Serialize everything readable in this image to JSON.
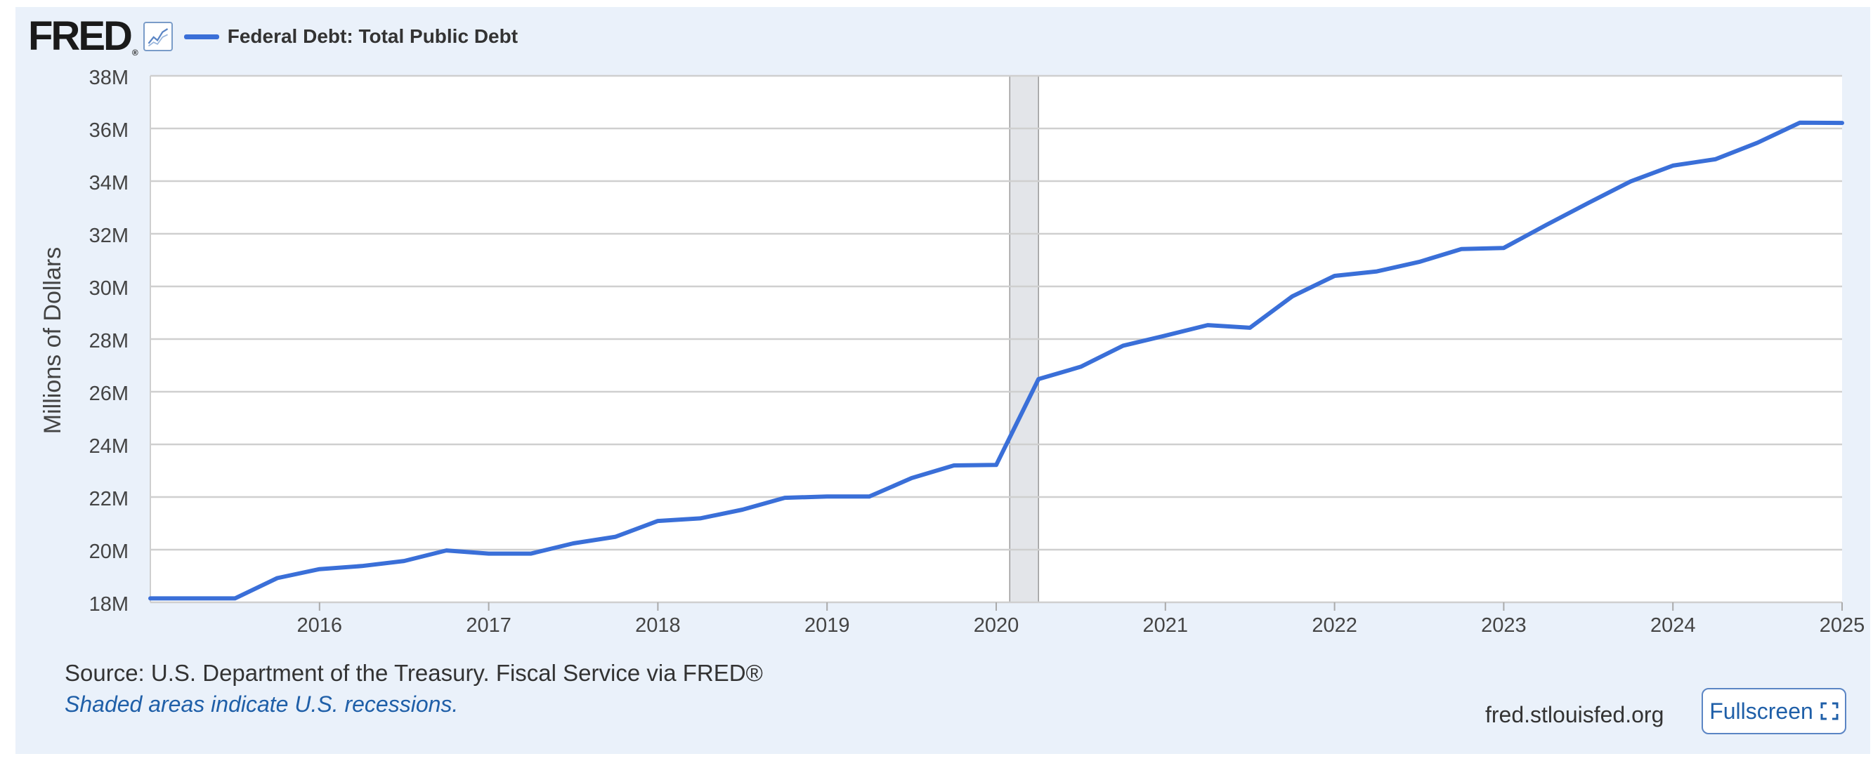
{
  "brand": {
    "logo_text": "FRED",
    "logo_reg": "®"
  },
  "legend": {
    "label": "Federal Debt: Total Public Debt",
    "color": "#3a6fd8"
  },
  "chart_data": {
    "type": "line",
    "title": "Federal Debt: Total Public Debt",
    "ylabel": "Millions of Dollars",
    "xlabel": "",
    "ylim": [
      18,
      38
    ],
    "xlim": [
      2015.0,
      2025.0
    ],
    "yticks": [
      18,
      20,
      22,
      24,
      26,
      28,
      30,
      32,
      34,
      36,
      38
    ],
    "ytick_labels": [
      "18M",
      "20M",
      "22M",
      "24M",
      "26M",
      "28M",
      "30M",
      "32M",
      "34M",
      "36M",
      "38M"
    ],
    "xticks": [
      2016,
      2017,
      2018,
      2019,
      2020,
      2021,
      2022,
      2023,
      2024,
      2025
    ],
    "xtick_labels": [
      "2016",
      "2017",
      "2018",
      "2019",
      "2020",
      "2021",
      "2022",
      "2023",
      "2024",
      "2025"
    ],
    "grid": true,
    "recessions": [
      {
        "start": 2020.08,
        "end": 2020.25
      }
    ],
    "series": [
      {
        "name": "Federal Debt: Total Public Debt",
        "color": "#3a6fd8",
        "x": [
          2015.0,
          2015.25,
          2015.5,
          2015.75,
          2016.0,
          2016.25,
          2016.5,
          2016.75,
          2017.0,
          2017.25,
          2017.5,
          2017.75,
          2018.0,
          2018.25,
          2018.5,
          2018.75,
          2019.0,
          2019.25,
          2019.5,
          2019.75,
          2020.0,
          2020.25,
          2020.5,
          2020.75,
          2021.0,
          2021.25,
          2021.5,
          2021.75,
          2022.0,
          2022.25,
          2022.5,
          2022.75,
          2023.0,
          2023.25,
          2023.5,
          2023.75,
          2024.0,
          2024.25,
          2024.5,
          2024.75,
          2025.0
        ],
        "values": [
          18.15,
          18.15,
          18.15,
          18.92,
          19.26,
          19.38,
          19.57,
          19.97,
          19.85,
          19.85,
          20.24,
          20.49,
          21.09,
          21.19,
          21.52,
          21.97,
          22.02,
          22.02,
          22.72,
          23.2,
          23.22,
          26.48,
          26.95,
          27.75,
          28.13,
          28.53,
          28.43,
          29.62,
          30.4,
          30.57,
          30.93,
          31.42,
          31.46,
          32.33,
          33.17,
          33.99,
          34.59,
          34.83,
          35.46,
          36.22,
          36.21
        ]
      }
    ]
  },
  "footer": {
    "source": "Source: U.S. Department of the Treasury. Fiscal Service via FRED®",
    "note": "Shaded areas indicate U.S. recessions.",
    "site": "fred.stlouisfed.org",
    "fullscreen_label": "Fullscreen"
  }
}
